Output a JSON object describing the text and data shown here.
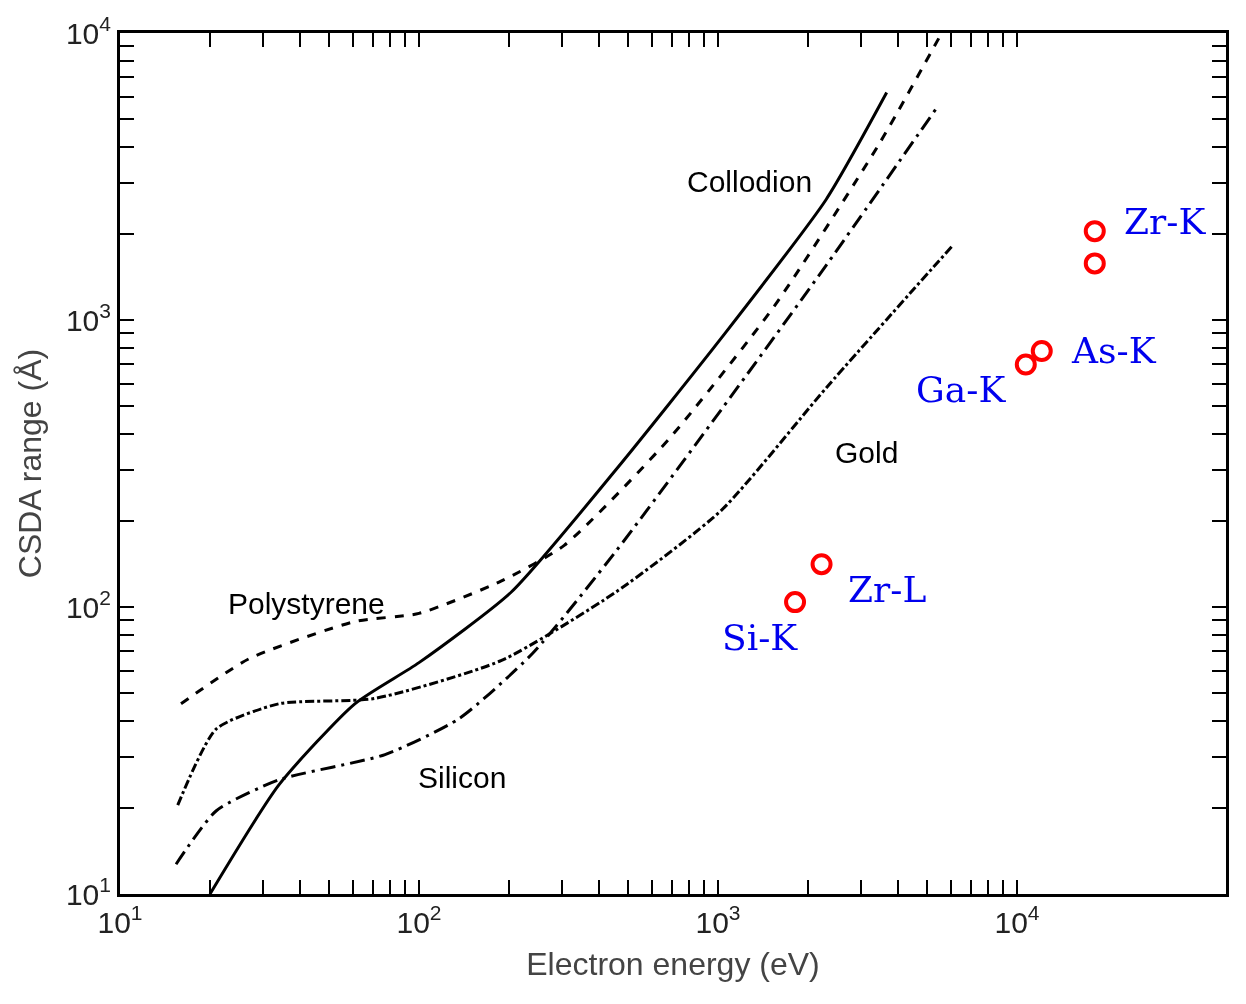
{
  "chart_data": {
    "type": "line",
    "xlabel": "Electron energy (eV)",
    "ylabel": "CSDA range (Å)",
    "log": "xy",
    "legend": false,
    "xlim": [
      10,
      50000
    ],
    "ylim": [
      10,
      10000
    ],
    "xticks": [
      {
        "value": 10,
        "label": "10$^{1}$"
      },
      {
        "value": 20,
        "label": null
      },
      {
        "value": 30,
        "label": null
      },
      {
        "value": 40,
        "label": null
      },
      {
        "value": 50,
        "label": null
      },
      {
        "value": 60,
        "label": null
      },
      {
        "value": 70,
        "label": null
      },
      {
        "value": 80,
        "label": null
      },
      {
        "value": 90,
        "label": null
      },
      {
        "value": 100,
        "label": "10$^{2}$"
      },
      {
        "value": 200,
        "label": null
      },
      {
        "value": 300,
        "label": null
      },
      {
        "value": 400,
        "label": null
      },
      {
        "value": 500,
        "label": null
      },
      {
        "value": 600,
        "label": null
      },
      {
        "value": 700,
        "label": null
      },
      {
        "value": 800,
        "label": null
      },
      {
        "value": 900,
        "label": null
      },
      {
        "value": 1000,
        "label": "10$^{3}$"
      },
      {
        "value": 2000,
        "label": null
      },
      {
        "value": 3000,
        "label": null
      },
      {
        "value": 4000,
        "label": null
      },
      {
        "value": 5000,
        "label": null
      },
      {
        "value": 6000,
        "label": null
      },
      {
        "value": 7000,
        "label": null
      },
      {
        "value": 8000,
        "label": null
      },
      {
        "value": 9000,
        "label": null
      },
      {
        "value": 10000,
        "label": "10$^{4}$"
      }
    ],
    "yticks": [
      {
        "value": 10,
        "label": "10$^{1}$"
      },
      {
        "value": 20,
        "label": null
      },
      {
        "value": 30,
        "label": null
      },
      {
        "value": 40,
        "label": null
      },
      {
        "value": 50,
        "label": null
      },
      {
        "value": 60,
        "label": null
      },
      {
        "value": 70,
        "label": null
      },
      {
        "value": 80,
        "label": null
      },
      {
        "value": 90,
        "label": null
      },
      {
        "value": 100,
        "label": "10$^{2}$"
      },
      {
        "value": 200,
        "label": null
      },
      {
        "value": 300,
        "label": null
      },
      {
        "value": 400,
        "label": null
      },
      {
        "value": 500,
        "label": null
      },
      {
        "value": 600,
        "label": null
      },
      {
        "value": 700,
        "label": null
      },
      {
        "value": 800,
        "label": null
      },
      {
        "value": 900,
        "label": null
      },
      {
        "value": 1000,
        "label": "10$^{3}$"
      },
      {
        "value": 2000,
        "label": null
      },
      {
        "value": 3000,
        "label": null
      },
      {
        "value": 4000,
        "label": null
      },
      {
        "value": 5000,
        "label": null
      },
      {
        "value": 6000,
        "label": null
      },
      {
        "value": 7000,
        "label": null
      },
      {
        "value": 8000,
        "label": null
      },
      {
        "value": 9000,
        "label": null
      },
      {
        "value": 10000,
        "label": "10$^{4}$"
      }
    ],
    "series": [
      {
        "name": "Collodion",
        "color": "#000000",
        "line_style": "solid",
        "marker": "none",
        "x": [
          20,
          34,
          61,
          100,
          204,
          457,
          1030,
          2300,
          3665
        ],
        "values": [
          10,
          24,
          46,
          64,
          113,
          302,
          870,
          2630,
          6200
        ]
      },
      {
        "name": "Polystyrene",
        "color": "#000000",
        "line_style": "dashed",
        "marker": "none",
        "x": [
          16,
          27,
          61,
          100,
          188,
          306,
          687,
          1545,
          3470,
          5600
        ],
        "values": [
          46,
          66,
          89,
          95,
          123,
          164,
          386,
          1120,
          4130,
          10000
        ]
      },
      {
        "name": "Silicon",
        "color": "#000000",
        "line_style": "longdashdot",
        "marker": "none",
        "x": [
          15.4,
          21,
          34,
          77,
          136,
          240,
          457,
          1030,
          2300,
          5400
        ],
        "values": [
          12.7,
          19.5,
          25,
          30.6,
          40.8,
          69,
          157,
          490,
          1550,
          5500
        ]
      },
      {
        "name": "Gold",
        "color": "#000000",
        "line_style": "dashdot",
        "marker": "none",
        "x": [
          15.6,
          21,
          34,
          71,
          188,
          457,
          1030,
          2300,
          6100
        ],
        "values": [
          20.4,
          37.6,
          46,
          48,
          65,
          113,
          218,
          580,
          1820
        ]
      },
      {
        "type": "scatter",
        "color": "#ff0000",
        "marker": "circle",
        "x": [
          1810,
          2220,
          10700,
          12100,
          18200,
          18200
        ],
        "values": [
          104,
          141,
          700,
          780,
          1575,
          2040
        ]
      }
    ],
    "annotations": [
      {
        "text": "Si-K",
        "x": 1810,
        "y": 104
      },
      {
        "text": "Zr-L",
        "x": 2220,
        "y": 141
      },
      {
        "text": "Ga-K",
        "x": 10700,
        "y": 700
      },
      {
        "text": "As-K",
        "x": 12100,
        "y": 780
      },
      {
        "text": "Zr-K",
        "x": 18200,
        "y": 2040
      }
    ]
  }
}
